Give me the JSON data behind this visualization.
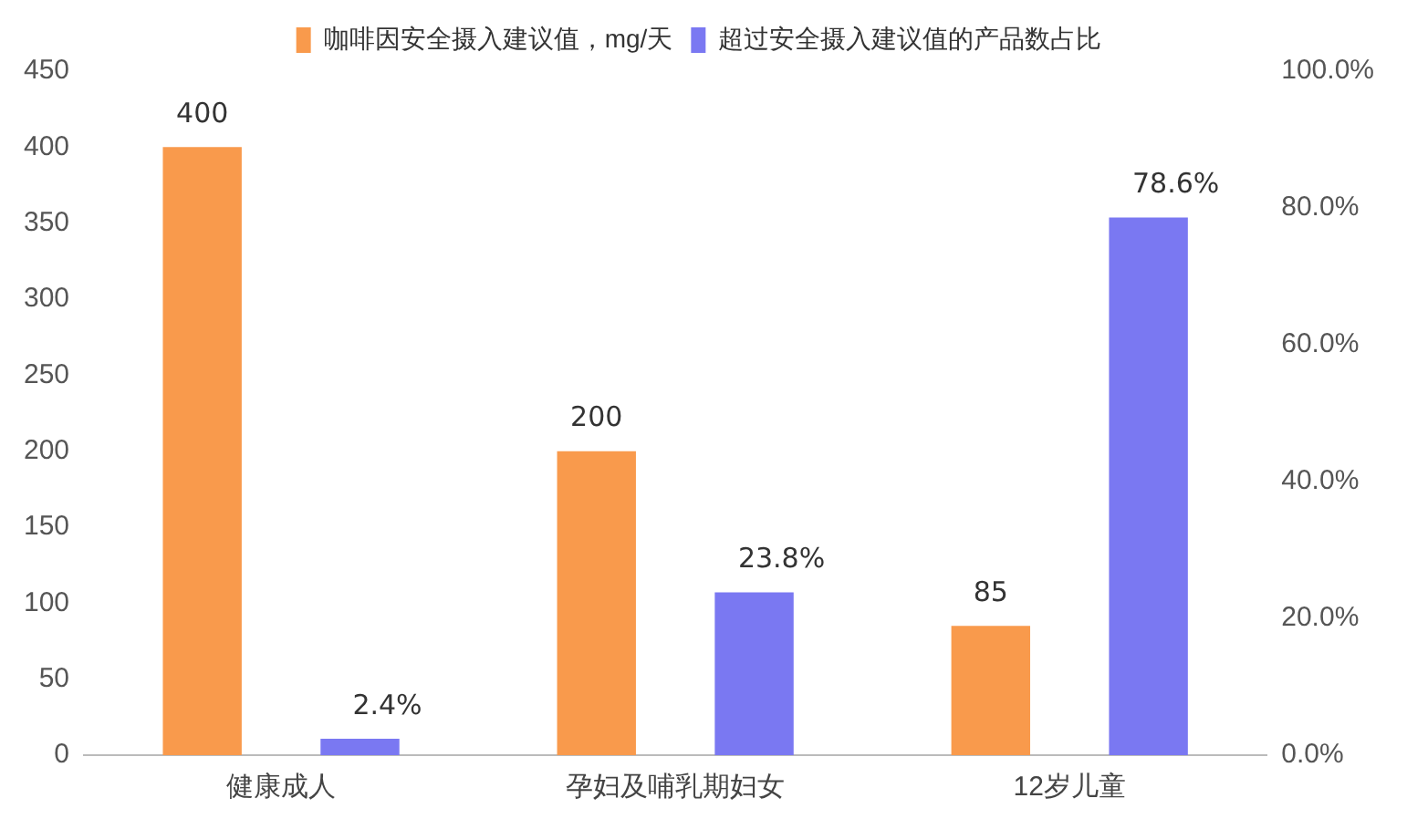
{
  "chart_data": {
    "type": "bar",
    "categories": [
      "健康成人",
      "孕妇及哺乳期妇女",
      "12岁儿童"
    ],
    "series": [
      {
        "name": "咖啡因安全摄入建议值，mg/天",
        "color": "#f99a4c",
        "values": [
          400,
          200,
          85
        ],
        "value_labels": [
          "400",
          "200",
          "85"
        ]
      },
      {
        "name": "超过安全摄入建议值的产品数占比",
        "color": "#7a78f2",
        "values": [
          2.4,
          23.8,
          78.6
        ],
        "value_labels": [
          "2.4%",
          "23.8%",
          "78.6%"
        ],
        "axis": "y2"
      }
    ],
    "ylim": [
      0,
      450
    ],
    "yticks": [
      0,
      50,
      100,
      150,
      200,
      250,
      300,
      350,
      400,
      450
    ],
    "y2lim": [
      0,
      100
    ],
    "y2ticks": [
      {
        "value": 0,
        "label": "0.0%"
      },
      {
        "value": 20,
        "label": "20.0%"
      },
      {
        "value": 40,
        "label": "40.0%"
      },
      {
        "value": 60,
        "label": "60.0%"
      },
      {
        "value": 80,
        "label": "80.0%"
      },
      {
        "value": 100,
        "label": "100.0%"
      }
    ],
    "grid": false,
    "legend": "top"
  }
}
